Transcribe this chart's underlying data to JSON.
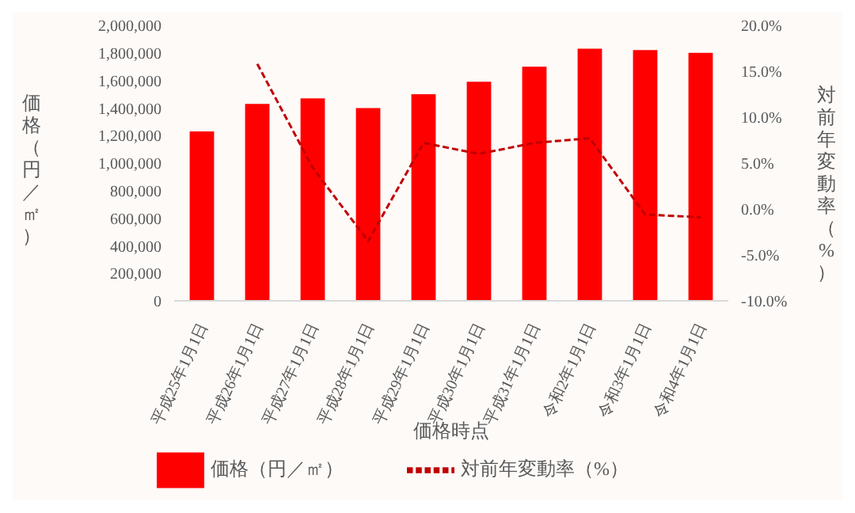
{
  "chart_data": {
    "type": "bar",
    "xlabel": "価格時点",
    "ylabel": "価格（円／㎡）",
    "y2label": "対前年変動率（%）",
    "categories": [
      "平成25年1月1日",
      "平成26年1月1日",
      "平成27年1月1日",
      "平成28年1月1日",
      "平成29年1月1日",
      "平成30年1月1日",
      "平成31年1月1日",
      "令和2年1月1日",
      "令和3年1月1日",
      "令和4年1月1日"
    ],
    "series": [
      {
        "name": "価格（円／㎡）",
        "color": "#ff0000",
        "values": [
          1230000,
          1430000,
          1470000,
          1400000,
          1500000,
          1590000,
          1700000,
          1830000,
          1820000,
          1800000
        ]
      },
      {
        "name": "対前年変動率（%）",
        "type": "line",
        "axis": "y2",
        "color": "#c00000",
        "line_style": "dashed",
        "marker": "none",
        "values": [
          null,
          15.8,
          4.5,
          -3.5,
          7.2,
          6.0,
          7.2,
          7.7,
          -0.6,
          -0.9
        ]
      }
    ],
    "ylim": [
      0,
      2000000
    ],
    "yticks": [
      0,
      {
        "value": 200000,
        "label": "200,000"
      },
      {
        "value": 400000,
        "label": "400,000"
      },
      {
        "value": 600000,
        "label": "600,000"
      },
      {
        "value": 800000,
        "label": "800,000"
      },
      {
        "value": 1000000,
        "label": "1,000,000"
      },
      {
        "value": 1200000,
        "label": "1,200,000"
      },
      {
        "value": 1400000,
        "label": "1,400,000"
      },
      {
        "value": 1600000,
        "label": "1,600,000"
      },
      {
        "value": 1800000,
        "label": "1,800,000"
      },
      {
        "value": 2000000,
        "label": "2,000,000"
      }
    ],
    "y2lim": [
      -10,
      20
    ],
    "y2ticks": [
      {
        "value": -10,
        "label": "-10.0%"
      },
      {
        "value": -5,
        "label": "-5.0%"
      },
      {
        "value": 0,
        "label": "0.0%"
      },
      {
        "value": 5,
        "label": "5.0%"
      },
      {
        "value": 10,
        "label": "10.0%"
      },
      {
        "value": 15,
        "label": "15.0%"
      },
      {
        "value": 20,
        "label": "20.0%"
      }
    ],
    "grid": false,
    "legend": "bottom"
  }
}
